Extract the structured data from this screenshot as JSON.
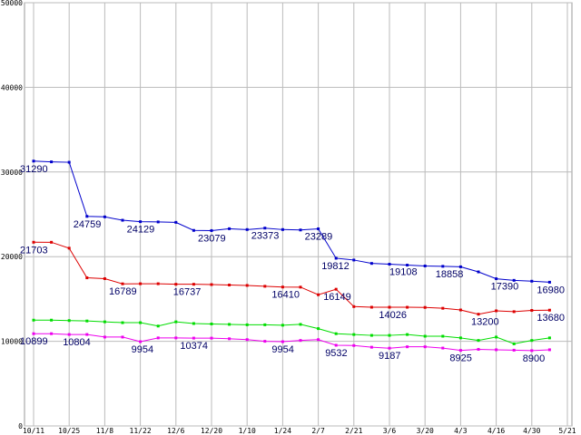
{
  "chart_data": {
    "type": "line",
    "ylim": [
      0,
      50000
    ],
    "yticks": [
      "0",
      "10000",
      "20000",
      "30000",
      "40000",
      "50000"
    ],
    "xlim": [
      0,
      58
    ],
    "x_tick_labels": [
      {
        "x": 0,
        "label": "10/11"
      },
      {
        "x": 4,
        "label": "10/25"
      },
      {
        "x": 8,
        "label": "11/8"
      },
      {
        "x": 12,
        "label": "11/22"
      },
      {
        "x": 16,
        "label": "12/6"
      },
      {
        "x": 20,
        "label": "12/20"
      },
      {
        "x": 24,
        "label": "1/10"
      },
      {
        "x": 28,
        "label": "1/24"
      },
      {
        "x": 32,
        "label": "2/7"
      },
      {
        "x": 36,
        "label": "2/21"
      },
      {
        "x": 40,
        "label": "3/6"
      },
      {
        "x": 44,
        "label": "3/20"
      },
      {
        "x": 48,
        "label": "4/3"
      },
      {
        "x": 52,
        "label": "4/16"
      },
      {
        "x": 56,
        "label": "4/30"
      },
      {
        "x": 60,
        "label": "5/21"
      }
    ],
    "grid": true,
    "series": [
      {
        "color": "#0000cc",
        "x": [
          0,
          2,
          4,
          6,
          8,
          10,
          12,
          14,
          16,
          18,
          20,
          22,
          24,
          26,
          28,
          30,
          32,
          34,
          36,
          38,
          40,
          42,
          44,
          46,
          48,
          50,
          52,
          54,
          56,
          58
        ],
        "values": [
          31290,
          31200,
          31150,
          24759,
          24700,
          24300,
          24129,
          24100,
          24050,
          23100,
          23079,
          23300,
          23200,
          23373,
          23200,
          23150,
          23289,
          19812,
          19600,
          19200,
          19108,
          19000,
          18900,
          18858,
          18800,
          18200,
          17390,
          17200,
          17100,
          16980
        ]
      },
      {
        "color": "#dd0000",
        "x": [
          0,
          2,
          4,
          6,
          8,
          10,
          12,
          14,
          16,
          18,
          20,
          22,
          24,
          26,
          28,
          30,
          32,
          34,
          36,
          38,
          40,
          42,
          44,
          46,
          48,
          50,
          52,
          54,
          56,
          58
        ],
        "values": [
          21703,
          21700,
          21000,
          17500,
          17400,
          16789,
          16800,
          16800,
          16737,
          16737,
          16700,
          16650,
          16600,
          16500,
          16410,
          16400,
          15500,
          16149,
          14100,
          14026,
          14026,
          14020,
          14000,
          13900,
          13700,
          13200,
          13600,
          13500,
          13650,
          13680
        ]
      },
      {
        "color": "#00dd00",
        "x": [
          0,
          2,
          4,
          6,
          8,
          10,
          12,
          14,
          16,
          18,
          20,
          22,
          24,
          26,
          28,
          30,
          32,
          34,
          36,
          38,
          40,
          42,
          44,
          46,
          48,
          50,
          52,
          54,
          56,
          58
        ],
        "values": [
          12500,
          12500,
          12450,
          12400,
          12300,
          12200,
          12200,
          11800,
          12300,
          12100,
          12050,
          12000,
          11950,
          11950,
          11900,
          12000,
          11500,
          10900,
          10800,
          10700,
          10700,
          10800,
          10600,
          10600,
          10400,
          10100,
          10500,
          9700,
          10100,
          10400
        ]
      },
      {
        "color": "#ee00ee",
        "x": [
          0,
          2,
          4,
          6,
          8,
          10,
          12,
          14,
          16,
          18,
          20,
          22,
          24,
          26,
          28,
          30,
          32,
          34,
          36,
          38,
          40,
          42,
          44,
          46,
          48,
          50,
          52,
          54,
          56,
          58
        ],
        "values": [
          10899,
          10900,
          10804,
          10804,
          10500,
          10500,
          9954,
          10400,
          10400,
          10374,
          10374,
          10300,
          10200,
          10000,
          9954,
          10100,
          10200,
          9532,
          9500,
          9300,
          9187,
          9350,
          9350,
          9200,
          8925,
          9050,
          9000,
          8950,
          8900,
          9000
        ]
      }
    ],
    "data_labels": [
      {
        "series": 0,
        "x": 0,
        "text": "31290",
        "dx": -15,
        "dy": 12
      },
      {
        "series": 0,
        "x": 6,
        "text": "24759",
        "dx": -15,
        "dy": 12
      },
      {
        "series": 0,
        "x": 12,
        "text": "24129",
        "dx": -15,
        "dy": 12
      },
      {
        "series": 0,
        "x": 20,
        "text": "23079",
        "dx": -15,
        "dy": 12
      },
      {
        "series": 0,
        "x": 26,
        "text": "23373",
        "dx": -15,
        "dy": 12
      },
      {
        "series": 0,
        "x": 32,
        "text": "23289",
        "dx": -15,
        "dy": 12
      },
      {
        "series": 0,
        "x": 34,
        "text": "19812",
        "dx": -16,
        "dy": 12
      },
      {
        "series": 0,
        "x": 40,
        "text": "19108",
        "dx": 0,
        "dy": 12
      },
      {
        "series": 0,
        "x": 46,
        "text": "18858",
        "dx": -8,
        "dy": 12
      },
      {
        "series": 0,
        "x": 52,
        "text": "17390",
        "dx": -6,
        "dy": 12
      },
      {
        "series": 0,
        "x": 58,
        "text": "16980",
        "dx": -14,
        "dy": 12
      },
      {
        "series": 1,
        "x": 0,
        "text": "21703",
        "dx": -15,
        "dy": 12
      },
      {
        "series": 1,
        "x": 10,
        "text": "16789",
        "dx": -15,
        "dy": 12
      },
      {
        "series": 1,
        "x": 16,
        "text": "16737",
        "dx": -3,
        "dy": 12
      },
      {
        "series": 1,
        "x": 28,
        "text": "16410",
        "dx": -12,
        "dy": 12
      },
      {
        "series": 1,
        "x": 34,
        "text": "16149",
        "dx": -14,
        "dy": 12
      },
      {
        "series": 1,
        "x": 38,
        "text": "14026",
        "dx": 8,
        "dy": 12
      },
      {
        "series": 1,
        "x": 50,
        "text": "13200",
        "dx": -8,
        "dy": 12
      },
      {
        "series": 1,
        "x": 58,
        "text": "13680",
        "dx": -14,
        "dy": 12
      },
      {
        "series": 3,
        "x": 0,
        "text": "10899",
        "dx": -15,
        "dy": 12
      },
      {
        "series": 3,
        "x": 4,
        "text": "10804",
        "dx": -7,
        "dy": 12
      },
      {
        "series": 3,
        "x": 12,
        "text": "9954",
        "dx": -10,
        "dy": 12
      },
      {
        "series": 3,
        "x": 18,
        "text": "10374",
        "dx": -15,
        "dy": 12
      },
      {
        "series": 3,
        "x": 28,
        "text": "9954",
        "dx": -12,
        "dy": 12
      },
      {
        "series": 3,
        "x": 34,
        "text": "9532",
        "dx": -12,
        "dy": 12
      },
      {
        "series": 3,
        "x": 40,
        "text": "9187",
        "dx": -12,
        "dy": 12
      },
      {
        "series": 3,
        "x": 48,
        "text": "8925",
        "dx": -12,
        "dy": 12
      },
      {
        "series": 3,
        "x": 56,
        "text": "8900",
        "dx": -10,
        "dy": 12
      }
    ]
  }
}
